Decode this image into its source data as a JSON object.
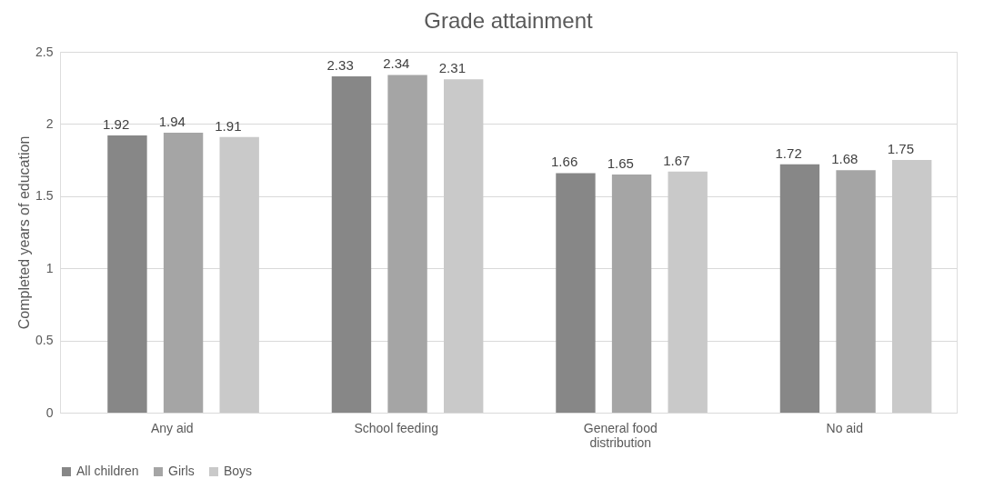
{
  "chart_data": {
    "type": "bar",
    "title": "Grade attainment",
    "ylabel": "Completed years of education",
    "categories": [
      "Any aid",
      "School feeding",
      "General food distribution",
      "No aid"
    ],
    "series": [
      {
        "name": "All children",
        "color": "#878787",
        "values": [
          1.92,
          2.33,
          1.66,
          1.72
        ]
      },
      {
        "name": "Girls",
        "color": "#a5a5a5",
        "values": [
          1.94,
          2.34,
          1.65,
          1.68
        ]
      },
      {
        "name": "Boys",
        "color": "#c9c9c9",
        "values": [
          1.91,
          2.31,
          1.67,
          1.75
        ]
      }
    ],
    "ylim": [
      0,
      2.5
    ],
    "yticks": [
      0,
      0.5,
      1,
      1.5,
      2,
      2.5
    ],
    "grid": "y",
    "legend": "bottom",
    "data_labels": true
  }
}
